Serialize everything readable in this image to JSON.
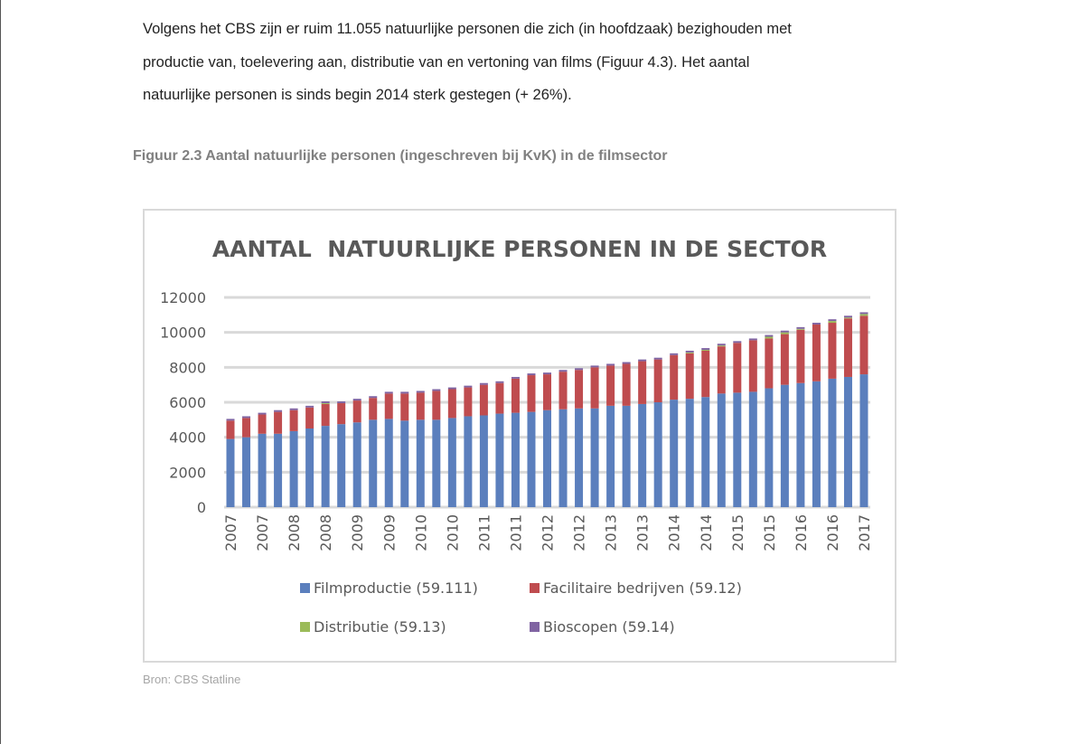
{
  "document": {
    "paragraph_lines": [
      "Volgens het CBS zijn er ruim 11.055 natuurlijke personen die zich (in hoofdzaak) bezighouden met",
      "productie van, toelevering aan, distributie van en vertoning van films (Figuur 4.3). Het aantal",
      "natuurlijke personen is sinds begin 2014 sterk gestegen (+ 26%)."
    ],
    "figure_caption": "Figuur 2.3 Aantal natuurlijke personen (ingeschreven bij KvK) in de filmsector",
    "source": "Bron: CBS Statline"
  },
  "chart_data": {
    "type": "bar",
    "stacked": true,
    "title": "AANTAL  NATUURLIJKE PERSONEN IN DE SECTOR",
    "xlabel": "",
    "ylabel": "",
    "ylim": [
      0,
      12000
    ],
    "yticks": [
      0,
      2000,
      4000,
      6000,
      8000,
      10000,
      12000
    ],
    "grid": true,
    "legend_position": "bottom",
    "categories": [
      "2007",
      "2007",
      "2007",
      "2007",
      "2008",
      "2008",
      "2008",
      "2008",
      "2009",
      "2009",
      "2009",
      "2009",
      "2010",
      "2010",
      "2010",
      "2010",
      "2011",
      "2011",
      "2011",
      "2011",
      "2012",
      "2012",
      "2012",
      "2012",
      "2013",
      "2013",
      "2013",
      "2013",
      "2014",
      "2014",
      "2014",
      "2014",
      "2015",
      "2015",
      "2015",
      "2015",
      "2016",
      "2016",
      "2016",
      "2016",
      "2017"
    ],
    "tick_labels": [
      "2007",
      "2007",
      "2008",
      "2008",
      "2009",
      "2009",
      "2010",
      "2010",
      "2011",
      "2011",
      "2012",
      "2012",
      "2013",
      "2013",
      "2014",
      "2014",
      "2015",
      "2015",
      "2016",
      "2016",
      "2017"
    ],
    "series": [
      {
        "name": "Filmproductie (59.111)",
        "color": "#5b7fbd",
        "values": [
          3900,
          4000,
          4200,
          4200,
          4350,
          4500,
          4650,
          4750,
          4850,
          5000,
          5050,
          4950,
          5000,
          5000,
          5100,
          5200,
          5250,
          5350,
          5400,
          5450,
          5550,
          5600,
          5650,
          5650,
          5800,
          5800,
          5900,
          6000,
          6150,
          6200,
          6300,
          6500,
          6550,
          6600,
          6800,
          7000,
          7100,
          7200,
          7350,
          7450,
          7600
        ]
      },
      {
        "name": "Facilitaire bedrijven (59.12)",
        "color": "#bf4c4f",
        "values": [
          1050,
          1100,
          1100,
          1250,
          1200,
          1200,
          1250,
          1200,
          1250,
          1250,
          1450,
          1550,
          1550,
          1650,
          1650,
          1650,
          1750,
          1750,
          1950,
          2100,
          2050,
          2150,
          2200,
          2350,
          2300,
          2400,
          2450,
          2450,
          2550,
          2600,
          2650,
          2700,
          2850,
          2950,
          2850,
          2900,
          3050,
          3250,
          3200,
          3350,
          3350
        ]
      },
      {
        "name": "Distributie (59.13)",
        "color": "#9bbb59",
        "values": [
          0,
          0,
          0,
          0,
          0,
          0,
          50,
          0,
          0,
          0,
          0,
          0,
          0,
          0,
          0,
          0,
          0,
          0,
          0,
          0,
          0,
          0,
          0,
          0,
          0,
          0,
          0,
          0,
          0,
          50,
          50,
          50,
          0,
          0,
          100,
          100,
          50,
          0,
          100,
          50,
          100
        ]
      },
      {
        "name": "Bioscopen (59.14)",
        "color": "#8064a2",
        "values": [
          100,
          100,
          100,
          100,
          100,
          100,
          100,
          100,
          100,
          100,
          100,
          100,
          100,
          100,
          100,
          100,
          100,
          100,
          100,
          100,
          100,
          100,
          100,
          100,
          100,
          100,
          100,
          100,
          100,
          100,
          100,
          100,
          100,
          100,
          100,
          100,
          100,
          100,
          100,
          100,
          100
        ]
      }
    ]
  }
}
